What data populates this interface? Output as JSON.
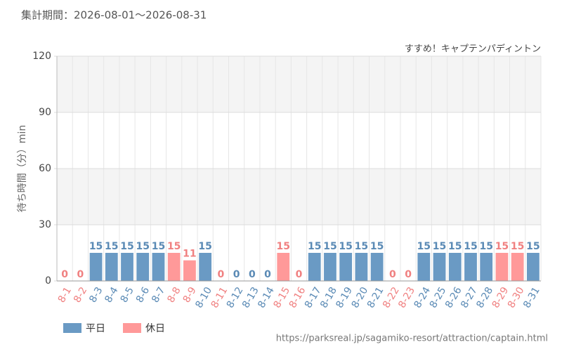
{
  "header": "集計期間：2026-08-01～2026-08-31",
  "footer": "https://parksreal.jp/sagamiko-resort/attraction/captain.html",
  "chart_data": {
    "type": "bar",
    "title": "すすめ！キャプテンパディントン",
    "y_label": "待ち時間（分）min",
    "categories": [
      "8-1",
      "8-2",
      "8-3",
      "8-4",
      "8-5",
      "8-6",
      "8-7",
      "8-8",
      "8-9",
      "8-10",
      "8-11",
      "8-12",
      "8-13",
      "8-14",
      "8-15",
      "8-16",
      "8-17",
      "8-18",
      "8-19",
      "8-20",
      "8-21",
      "8-22",
      "8-23",
      "8-24",
      "8-25",
      "8-26",
      "8-27",
      "8-28",
      "8-29",
      "8-30",
      "8-31"
    ],
    "series": [
      {
        "name": "平日",
        "color": "#6a9ac4",
        "label_color": "#5a8ab5",
        "values": [
          null,
          null,
          15,
          15,
          15,
          15,
          15,
          null,
          null,
          15,
          null,
          0,
          0,
          0,
          null,
          null,
          15,
          15,
          15,
          15,
          15,
          null,
          null,
          15,
          15,
          15,
          15,
          15,
          null,
          null,
          15
        ]
      },
      {
        "name": "休日",
        "color": "#ff9999",
        "label_color": "#f08080",
        "values": [
          0,
          0,
          null,
          null,
          null,
          null,
          null,
          15,
          11,
          null,
          0,
          null,
          null,
          null,
          15,
          0,
          null,
          null,
          null,
          null,
          null,
          0,
          0,
          null,
          null,
          null,
          null,
          null,
          15,
          15,
          null
        ]
      }
    ],
    "ylim": [
      0,
      120
    ],
    "yticks": [
      0,
      30,
      60,
      90,
      120
    ],
    "grid": true
  }
}
